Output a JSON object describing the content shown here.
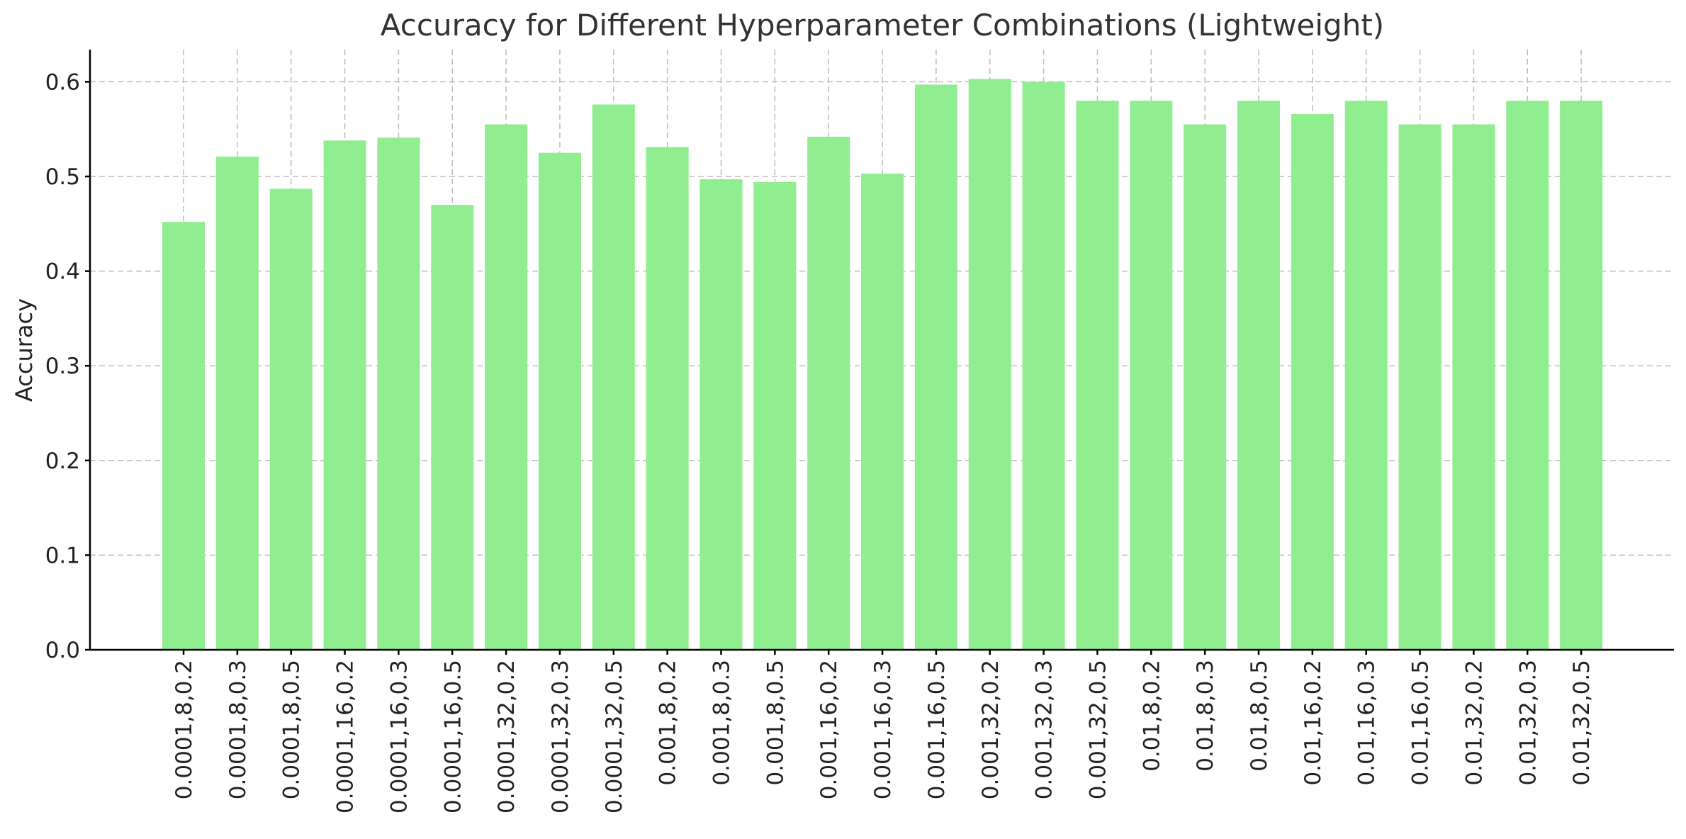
{
  "chart_data": {
    "type": "bar",
    "title": "Accuracy for Different Hyperparameter Combinations (Lightweight)",
    "xlabel": "",
    "ylabel": "Accuracy",
    "ylim": [
      0,
      0.634
    ],
    "yticks": [
      0.0,
      0.1,
      0.2,
      0.3,
      0.4,
      0.5,
      0.6
    ],
    "ytick_labels": [
      "0.0",
      "0.1",
      "0.2",
      "0.3",
      "0.4",
      "0.5",
      "0.6"
    ],
    "grid": true,
    "bar_color": "#90ee90",
    "categories": [
      "0.0001,8,0.2",
      "0.0001,8,0.3",
      "0.0001,8,0.5",
      "0.0001,16,0.2",
      "0.0001,16,0.3",
      "0.0001,16,0.5",
      "0.0001,32,0.2",
      "0.0001,32,0.3",
      "0.0001,32,0.5",
      "0.001,8,0.2",
      "0.001,8,0.3",
      "0.001,8,0.5",
      "0.001,16,0.2",
      "0.001,16,0.3",
      "0.001,16,0.5",
      "0.001,32,0.2",
      "0.001,32,0.3",
      "0.001,32,0.5",
      "0.01,8,0.2",
      "0.01,8,0.3",
      "0.01,8,0.5",
      "0.01,16,0.2",
      "0.01,16,0.3",
      "0.01,16,0.5",
      "0.01,32,0.2",
      "0.01,32,0.3",
      "0.01,32,0.5"
    ],
    "values": [
      0.452,
      0.521,
      0.487,
      0.538,
      0.541,
      0.47,
      0.555,
      0.525,
      0.576,
      0.531,
      0.497,
      0.494,
      0.542,
      0.503,
      0.597,
      0.603,
      0.6,
      0.58,
      0.58,
      0.555,
      0.58,
      0.566,
      0.58,
      0.555,
      0.555,
      0.58,
      0.58
    ]
  }
}
